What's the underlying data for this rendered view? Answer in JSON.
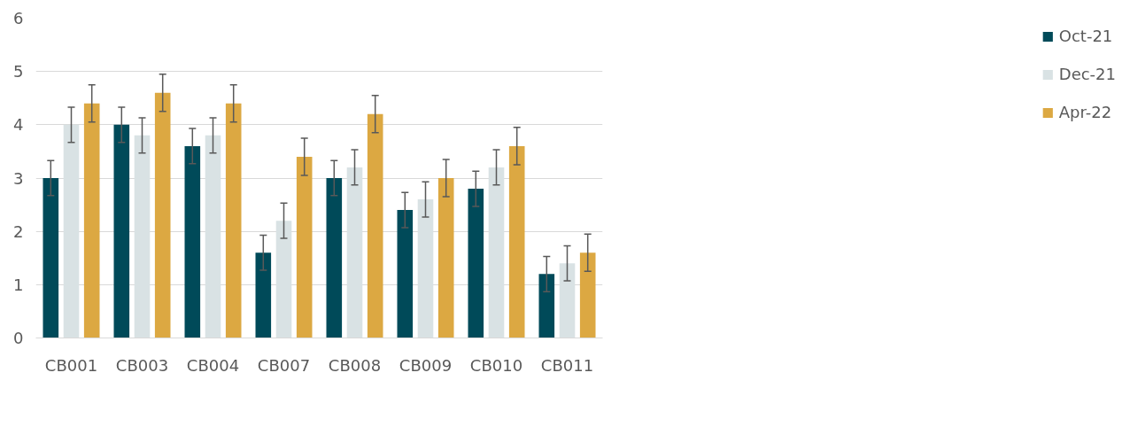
{
  "chart_data": {
    "type": "bar",
    "categories": [
      "CB001",
      "CB003",
      "CB004",
      "CB007",
      "CB008",
      "CB009",
      "CB010",
      "CB011"
    ],
    "series": [
      {
        "name": "Oct-21",
        "color": "#004a59",
        "values": [
          3.0,
          4.0,
          3.6,
          1.6,
          3.0,
          2.4,
          2.8,
          1.2
        ],
        "errors": [
          0.33,
          0.33,
          0.33,
          0.33,
          0.33,
          0.33,
          0.33,
          0.33
        ]
      },
      {
        "name": "Dec-21",
        "color": "#d9e2e4",
        "values": [
          4.0,
          3.8,
          3.8,
          2.2,
          3.2,
          2.6,
          3.2,
          1.4
        ],
        "errors": [
          0.33,
          0.33,
          0.33,
          0.33,
          0.33,
          0.33,
          0.33,
          0.33
        ]
      },
      {
        "name": "Apr-22",
        "color": "#dca842",
        "values": [
          4.4,
          4.6,
          4.4,
          3.4,
          4.2,
          3.0,
          3.6,
          1.6
        ],
        "errors": [
          0.35,
          0.35,
          0.35,
          0.35,
          0.35,
          0.35,
          0.35,
          0.35
        ]
      }
    ],
    "ylim": [
      0,
      6
    ],
    "yticks": [
      0,
      1,
      2,
      3,
      4,
      5,
      6
    ],
    "grid": "y",
    "legend": "right"
  }
}
